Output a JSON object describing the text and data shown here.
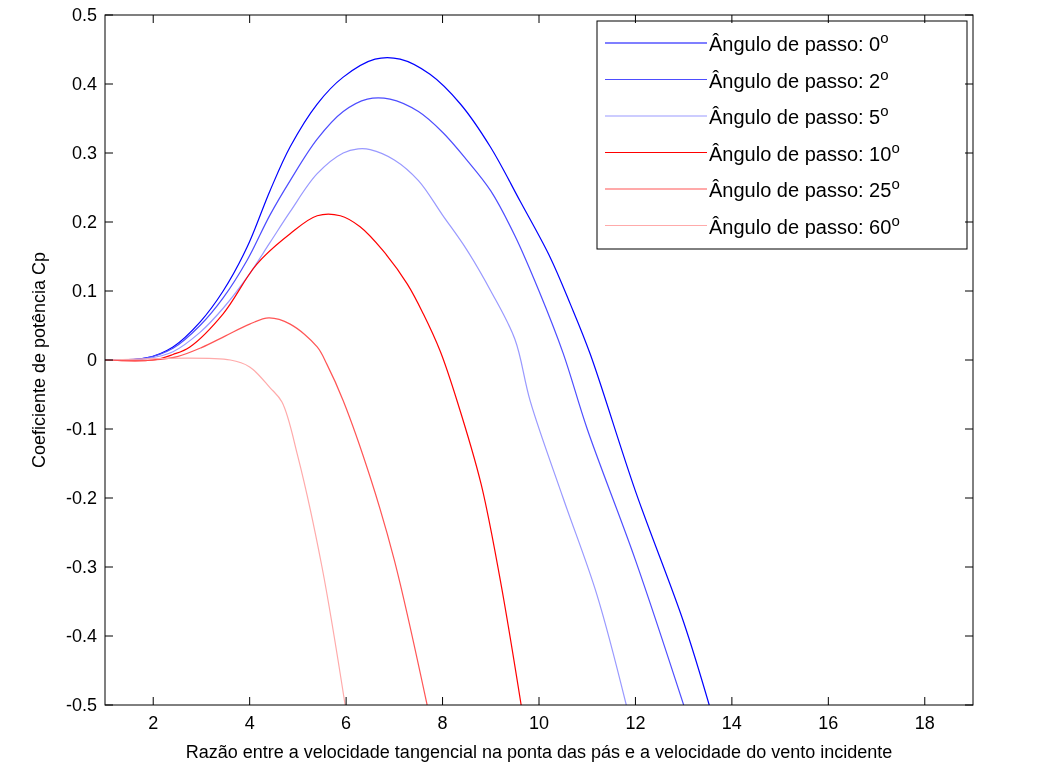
{
  "chart_data": {
    "type": "line",
    "xlabel": "Razão entre a velocidade tangencial na ponta das pás e a velocidade do vento incidente",
    "ylabel": "Coeficiente de potência Cp",
    "xlim": [
      1,
      19
    ],
    "xticks": [
      2,
      4,
      6,
      8,
      10,
      12,
      14,
      16,
      18
    ],
    "ylim": [
      -0.5,
      0.5
    ],
    "yticks": [
      -0.5,
      -0.4,
      -0.3,
      -0.2,
      -0.1,
      0,
      0.1,
      0.2,
      0.3,
      0.4,
      0.5
    ],
    "grid": false,
    "legend": "top right",
    "line_style": "solid",
    "marker": "none",
    "series": [
      {
        "name": "Ângulo de passo: 0$^{o}$",
        "color": "#0000ff",
        "x": [
          1,
          1.86,
          2.41,
          2.97,
          3.45,
          3.95,
          4.42,
          4.84,
          5.4,
          5.94,
          6.6,
          7.12,
          7.74,
          8.37,
          8.99,
          9.61,
          10.23,
          10.65,
          11.06,
          12,
          13,
          13.53
        ],
        "values": [
          0,
          0.003,
          0.019,
          0.055,
          0.1,
          0.164,
          0.245,
          0.309,
          0.371,
          0.41,
          0.436,
          0.436,
          0.414,
          0.371,
          0.309,
          0.23,
          0.149,
          0.081,
          0.009,
          -0.19,
          -0.38,
          -0.5
        ]
      },
      {
        "name": "Ângulo de passo: 2$^{o}$",
        "color": "#4d4dff",
        "x": [
          1,
          1.86,
          2.41,
          2.97,
          3.45,
          3.95,
          4.42,
          4.84,
          5.4,
          5.94,
          6.44,
          6.91,
          7.5,
          8,
          8.5,
          9,
          9.5,
          10,
          10.5,
          11,
          12,
          13
        ],
        "values": [
          0,
          0.003,
          0.017,
          0.05,
          0.09,
          0.145,
          0.21,
          0.26,
          0.32,
          0.36,
          0.378,
          0.378,
          0.36,
          0.33,
          0.29,
          0.245,
          0.18,
          0.1,
          0.01,
          -0.1,
          -0.29,
          -0.5
        ]
      },
      {
        "name": "Ângulo de passo: 5$^{o}$",
        "color": "#9999ff",
        "x": [
          1,
          1.86,
          2.41,
          2.97,
          3.45,
          3.95,
          4.42,
          4.84,
          5.4,
          5.94,
          6.25,
          6.5,
          7,
          7.5,
          8,
          8.5,
          9,
          9.5,
          9.82,
          10.5,
          11.2,
          11.81
        ],
        "values": [
          0,
          0.002,
          0.012,
          0.04,
          0.075,
          0.12,
          0.17,
          0.215,
          0.27,
          0.3,
          0.306,
          0.305,
          0.29,
          0.26,
          0.21,
          0.16,
          0.1,
          0.03,
          -0.06,
          -0.2,
          -0.34,
          -0.5
        ]
      },
      {
        "name": "Ângulo de passo: 10$^{o}$",
        "color": "#ff0000",
        "x": [
          1,
          2,
          2.41,
          2.76,
          3.45,
          4.15,
          4.84,
          5.4,
          5.88,
          6.29,
          6.77,
          7.27,
          7.6,
          7.95,
          8.3,
          8.8,
          9.2,
          9.63
        ],
        "values": [
          0,
          0,
          0.008,
          0.019,
          0.067,
          0.139,
          0.183,
          0.209,
          0.209,
          0.193,
          0.158,
          0.11,
          0.067,
          0.013,
          -0.059,
          -0.18,
          -0.32,
          -0.5
        ]
      },
      {
        "name": "Ângulo de passo: 25$^{o}$",
        "color": "#ff5555",
        "x": [
          1,
          2,
          2.5,
          3,
          3.5,
          4,
          4.4,
          4.84,
          5.4,
          5.6,
          5.94,
          6.5,
          7,
          7.68
        ],
        "values": [
          0,
          0,
          0.005,
          0.018,
          0.035,
          0.052,
          0.061,
          0.052,
          0.019,
          -0.006,
          -0.059,
          -0.17,
          -0.29,
          -0.5
        ]
      },
      {
        "name": "Ângulo de passo: 60$^{o}$",
        "color": "#ffaaaa",
        "x": [
          1,
          3.6,
          4,
          4.42,
          4.67,
          5,
          5.5,
          5.98
        ],
        "values": [
          0,
          0,
          -0.01,
          -0.04,
          -0.061,
          -0.14,
          -0.3,
          -0.5
        ]
      }
    ]
  }
}
